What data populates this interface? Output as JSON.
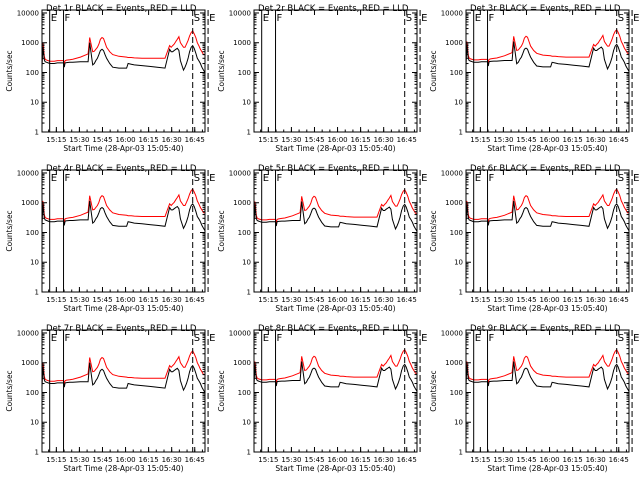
{
  "figure": {
    "xlabel": "Start Time (28-Apr-03 15:05:40)",
    "ylabel": "Counts/sec",
    "xtick_labels": [
      "15:15",
      "15:30",
      "15:45",
      "16:00",
      "16:15",
      "16:30",
      "16:45"
    ],
    "ytick_labels": [
      "1",
      "10",
      "100",
      "1000",
      "10000"
    ],
    "series_colors": {
      "events": "#000000",
      "lld": "#ff0000"
    }
  },
  "chart_data": [
    {
      "type": "line",
      "title": "Det 1r BLACK = Events, RED = LLD",
      "has_data": true,
      "scale": 1.0,
      "markers": [
        {
          "t": 5,
          "label": "E"
        },
        {
          "t": 14,
          "label": "F"
        },
        {
          "t": 98,
          "label": "S"
        },
        {
          "t": 108,
          "label": "E"
        }
      ]
    },
    {
      "type": "line",
      "title": "Det 2r BLACK = Events, RED = LLD",
      "has_data": false,
      "scale": 1.0,
      "markers": [
        {
          "t": 5,
          "label": "E"
        },
        {
          "t": 14,
          "label": "F"
        },
        {
          "t": 98,
          "label": "S"
        },
        {
          "t": 108,
          "label": "E"
        }
      ]
    },
    {
      "type": "line",
      "title": "Det 3r BLACK = Events, RED = LLD",
      "has_data": true,
      "scale": 1.1,
      "markers": [
        {
          "t": 5,
          "label": "E"
        },
        {
          "t": 14,
          "label": "F"
        },
        {
          "t": 98,
          "label": "S"
        },
        {
          "t": 108,
          "label": "E"
        }
      ]
    },
    {
      "type": "line",
      "title": "Det 4r BLACK = Events, RED = LLD",
      "has_data": true,
      "scale": 1.15,
      "markers": [
        {
          "t": 5,
          "label": "E"
        },
        {
          "t": 14,
          "label": "F"
        },
        {
          "t": 98,
          "label": "S"
        },
        {
          "t": 108,
          "label": "E"
        }
      ]
    },
    {
      "type": "line",
      "title": "Det 5r BLACK = Events, RED = LLD",
      "has_data": true,
      "scale": 1.1,
      "markers": [
        {
          "t": 5,
          "label": "E"
        },
        {
          "t": 14,
          "label": "F"
        },
        {
          "t": 98,
          "label": "S"
        },
        {
          "t": 108,
          "label": "E"
        }
      ]
    },
    {
      "type": "line",
      "title": "Det 6r BLACK = Events, RED = LLD",
      "has_data": true,
      "scale": 1.15,
      "markers": [
        {
          "t": 5,
          "label": "E"
        },
        {
          "t": 14,
          "label": "F"
        },
        {
          "t": 98,
          "label": "S"
        },
        {
          "t": 108,
          "label": "E"
        }
      ]
    },
    {
      "type": "line",
      "title": "Det 7r BLACK = Events, RED = LLD",
      "has_data": true,
      "scale": 1.0,
      "markers": [
        {
          "t": 5,
          "label": "E"
        },
        {
          "t": 14,
          "label": "F"
        },
        {
          "t": 98,
          "label": "S"
        },
        {
          "t": 108,
          "label": "E"
        }
      ]
    },
    {
      "type": "line",
      "title": "Det 8r BLACK = Events, RED = LLD",
      "has_data": true,
      "scale": 1.1,
      "markers": [
        {
          "t": 5,
          "label": "E"
        },
        {
          "t": 14,
          "label": "F"
        },
        {
          "t": 98,
          "label": "S"
        },
        {
          "t": 108,
          "label": "E"
        }
      ]
    },
    {
      "type": "line",
      "title": "Det 9r BLACK = Events, RED = LLD",
      "has_data": true,
      "scale": 1.1,
      "markers": [
        {
          "t": 5,
          "label": "E"
        },
        {
          "t": 14,
          "label": "F"
        },
        {
          "t": 98,
          "label": "S"
        },
        {
          "t": 108,
          "label": "E"
        }
      ]
    }
  ],
  "time_axis": {
    "unit": "minutes after 15:05:40",
    "range": [
      0,
      106
    ]
  },
  "base_profile": {
    "t": [
      0,
      0.5,
      1,
      1.5,
      2,
      3,
      4,
      5,
      8,
      10,
      13,
      14,
      14.5,
      15,
      16,
      18,
      20,
      25,
      30,
      31,
      33,
      34,
      35,
      36,
      37,
      38,
      39,
      40,
      41,
      42,
      44,
      46,
      50,
      55,
      56,
      58,
      60,
      65,
      70,
      75,
      80,
      83,
      84,
      85,
      86,
      87,
      88,
      89,
      90,
      92,
      93,
      94,
      95,
      96,
      97,
      98,
      99,
      100,
      101,
      102,
      103,
      104,
      105,
      106
    ],
    "lld": [
      200,
      1000,
      700,
      350,
      280,
      260,
      250,
      240,
      240,
      250,
      250,
      250,
      200,
      250,
      260,
      270,
      280,
      330,
      420,
      1500,
      500,
      520,
      600,
      700,
      900,
      1300,
      1500,
      1400,
      1000,
      700,
      500,
      400,
      350,
      330,
      320,
      320,
      310,
      300,
      300,
      300,
      300,
      800,
      700,
      800,
      900,
      1100,
      1300,
      1600,
      1000,
      700,
      700,
      900,
      1200,
      1700,
      2200,
      2500,
      2000,
      1500,
      1000,
      800,
      600,
      500,
      400,
      400
    ],
    "ev": [
      150,
      700,
      450,
      270,
      230,
      220,
      210,
      200,
      200,
      210,
      210,
      210,
      150,
      210,
      215,
      220,
      220,
      230,
      230,
      1000,
      180,
      200,
      250,
      300,
      400,
      550,
      600,
      550,
      400,
      300,
      200,
      150,
      140,
      140,
      200,
      190,
      180,
      170,
      160,
      150,
      140,
      600,
      500,
      500,
      550,
      600,
      650,
      550,
      250,
      120,
      150,
      200,
      300,
      500,
      700,
      800,
      650,
      450,
      300,
      250,
      200,
      150,
      120,
      100
    ]
  }
}
